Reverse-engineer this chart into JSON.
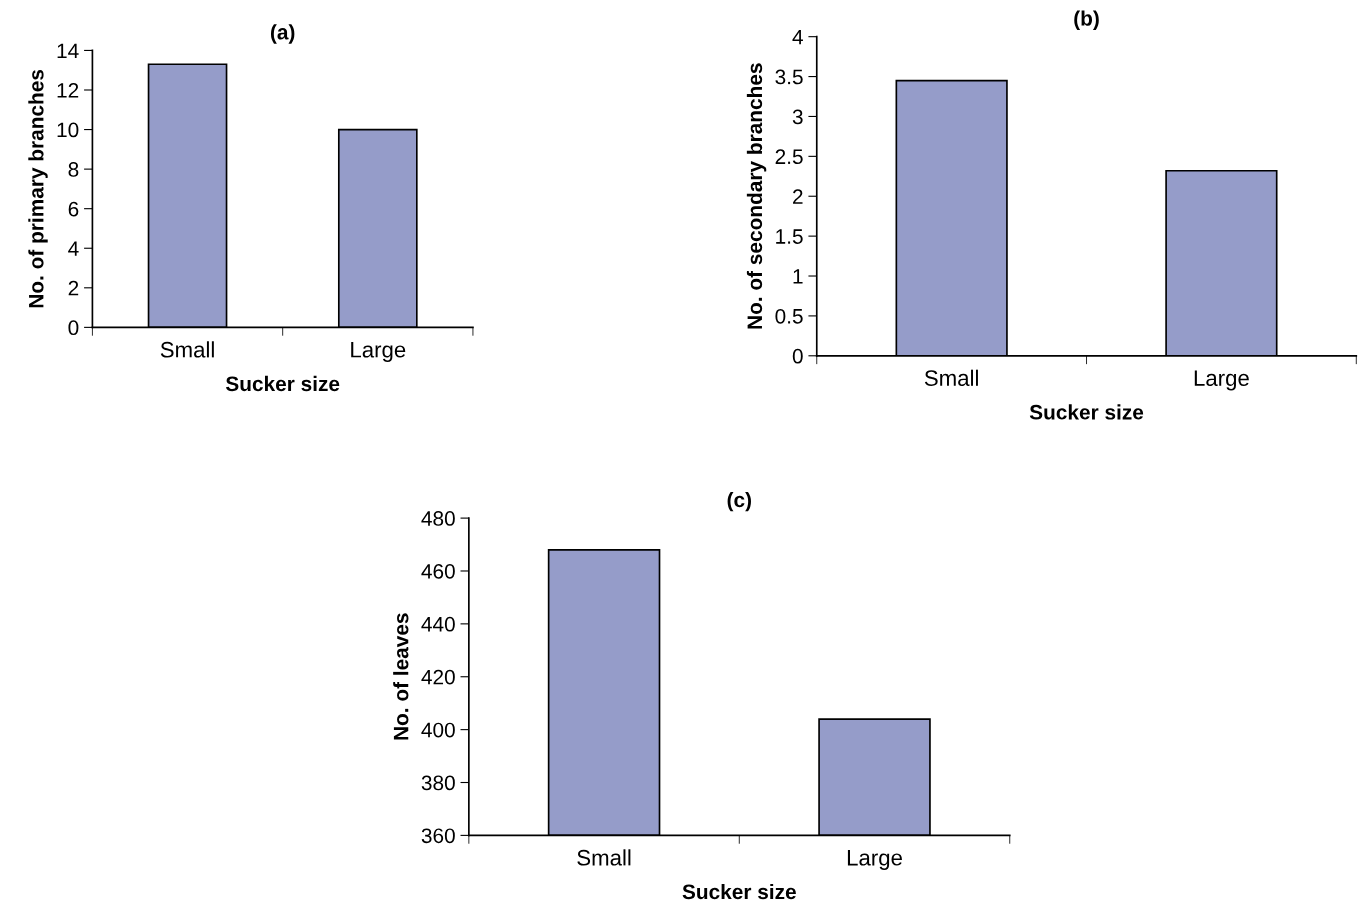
{
  "chart_data": [
    {
      "type": "bar",
      "title": "(a)",
      "xlabel": "Sucker size",
      "ylabel": "No. of primary branches",
      "categories": [
        "Small",
        "Large"
      ],
      "values": [
        13.3,
        10.0
      ],
      "color": "#959cc9",
      "ylim": [
        0,
        14
      ],
      "yticks": [
        0,
        2,
        4,
        6,
        8,
        10,
        12,
        14
      ],
      "grid": false,
      "legend": false
    },
    {
      "type": "bar",
      "title": "(b)",
      "xlabel": "Sucker size",
      "ylabel": "No. of secondary branches",
      "categories": [
        "Small",
        "Large"
      ],
      "values": [
        3.45,
        2.32
      ],
      "color": "#959cc9",
      "ylim": [
        0,
        4
      ],
      "yticks": [
        0,
        0.5,
        1,
        1.5,
        2,
        2.5,
        3,
        3.5,
        4
      ],
      "grid": false,
      "legend": false
    },
    {
      "type": "bar",
      "title": "(c)",
      "xlabel": "Sucker size",
      "ylabel": "No. of leaves",
      "categories": [
        "Small",
        "Large"
      ],
      "values": [
        468,
        404
      ],
      "color": "#959cc9",
      "ylim": [
        360,
        480
      ],
      "yticks": [
        360,
        380,
        400,
        420,
        440,
        460,
        480
      ],
      "grid": false,
      "legend": false
    }
  ]
}
